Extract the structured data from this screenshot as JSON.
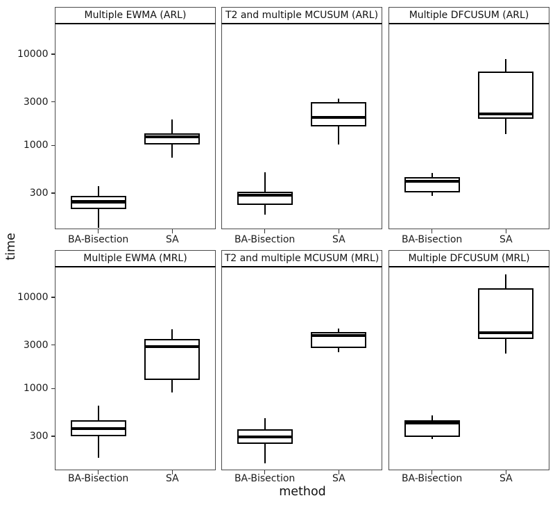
{
  "chart_data": {
    "type": "boxplot",
    "title": "",
    "xlabel": "method",
    "ylabel": "time",
    "x_categories": [
      "BA-Bisection",
      "SA"
    ],
    "y_scale": "log10",
    "y_ticks": [
      300,
      1000,
      3000,
      10000
    ],
    "ylim": [
      120,
      22010
    ],
    "grid": "off",
    "legend": "none",
    "facets": [
      {
        "title": "Multiple EWMA (ARL)",
        "row": 0,
        "col": 0,
        "boxes": [
          {
            "category": "BA-Bisection",
            "whisker_low": 125,
            "q1": 200,
            "median": 240,
            "q3": 280,
            "whisker_high": 355
          },
          {
            "category": "SA",
            "whisker_low": 730,
            "q1": 1020,
            "median": 1240,
            "q3": 1350,
            "whisker_high": 1920
          }
        ]
      },
      {
        "title": "T2 and multiple MCUSUM (ARL)",
        "row": 0,
        "col": 1,
        "boxes": [
          {
            "category": "BA-Bisection",
            "whisker_low": 175,
            "q1": 223,
            "median": 285,
            "q3": 310,
            "whisker_high": 505
          },
          {
            "category": "SA",
            "whisker_low": 1020,
            "q1": 1620,
            "median": 2030,
            "q3": 3000,
            "whisker_high": 3250
          }
        ]
      },
      {
        "title": "Multiple DFCUSUM (ARL)",
        "row": 0,
        "col": 2,
        "boxes": [
          {
            "category": "BA-Bisection",
            "whisker_low": 280,
            "q1": 305,
            "median": 405,
            "q3": 450,
            "whisker_high": 500
          },
          {
            "category": "SA",
            "whisker_low": 1330,
            "q1": 1960,
            "median": 2210,
            "q3": 6450,
            "whisker_high": 8850
          }
        ]
      },
      {
        "title": "Multiple EWMA (MRL)",
        "row": 1,
        "col": 0,
        "boxes": [
          {
            "category": "BA-Bisection",
            "whisker_low": 175,
            "q1": 300,
            "median": 365,
            "q3": 445,
            "whisker_high": 645
          },
          {
            "category": "SA",
            "whisker_low": 900,
            "q1": 1240,
            "median": 2880,
            "q3": 3510,
            "whisker_high": 4450
          }
        ]
      },
      {
        "title": "T2 and multiple MCUSUM (MRL)",
        "row": 1,
        "col": 1,
        "boxes": [
          {
            "category": "BA-Bisection",
            "whisker_low": 150,
            "q1": 245,
            "median": 295,
            "q3": 360,
            "whisker_high": 470
          },
          {
            "category": "SA",
            "whisker_low": 2520,
            "q1": 2780,
            "median": 3810,
            "q3": 4170,
            "whisker_high": 4550
          }
        ]
      },
      {
        "title": "Multiple DFCUSUM (MRL)",
        "row": 1,
        "col": 2,
        "boxes": [
          {
            "category": "BA-Bisection",
            "whisker_low": 280,
            "q1": 295,
            "median": 420,
            "q3": 445,
            "whisker_high": 510
          },
          {
            "category": "SA",
            "whisker_low": 2420,
            "q1": 3490,
            "median": 4090,
            "q3": 12560,
            "whisker_high": 17800
          }
        ]
      }
    ],
    "colors": {
      "box_stroke": "#000000",
      "box_fill": "#ffffff",
      "text": "#111111",
      "panel_border": "#4a4a4a"
    }
  }
}
